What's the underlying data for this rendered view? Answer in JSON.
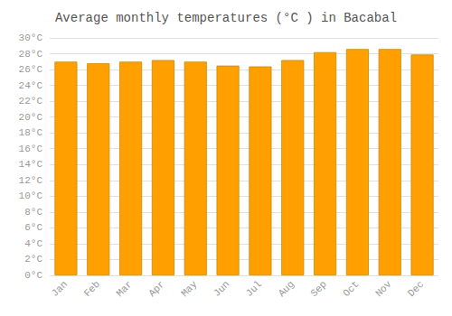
{
  "chart_data": {
    "type": "bar",
    "title": "Average monthly temperatures (°C ) in Bacabal",
    "categories": [
      "Jan",
      "Feb",
      "Mar",
      "Apr",
      "May",
      "Jun",
      "Jul",
      "Aug",
      "Sep",
      "Oct",
      "Nov",
      "Dec"
    ],
    "values": [
      27.0,
      26.8,
      27.0,
      27.2,
      27.0,
      26.5,
      26.4,
      27.2,
      28.2,
      28.6,
      28.6,
      27.9
    ],
    "color": "#FFA000",
    "ylim": [
      0,
      30
    ],
    "yticks": [
      {
        "value": 0,
        "label": "0°C"
      },
      {
        "value": 2,
        "label": "2°C"
      },
      {
        "value": 4,
        "label": "4°C"
      },
      {
        "value": 6,
        "label": "6°C"
      },
      {
        "value": 8,
        "label": "8°C"
      },
      {
        "value": 10,
        "label": "10°C"
      },
      {
        "value": 12,
        "label": "12°C"
      },
      {
        "value": 14,
        "label": "14°C"
      },
      {
        "value": 16,
        "label": "16°C"
      },
      {
        "value": 18,
        "label": "18°C"
      },
      {
        "value": 20,
        "label": "20°C"
      },
      {
        "value": 22,
        "label": "22°C"
      },
      {
        "value": 24,
        "label": "24°C"
      },
      {
        "value": 26,
        "label": "26°C"
      },
      {
        "value": 28,
        "label": "28°C"
      },
      {
        "value": 30,
        "label": "30°C"
      }
    ],
    "grid": true
  }
}
